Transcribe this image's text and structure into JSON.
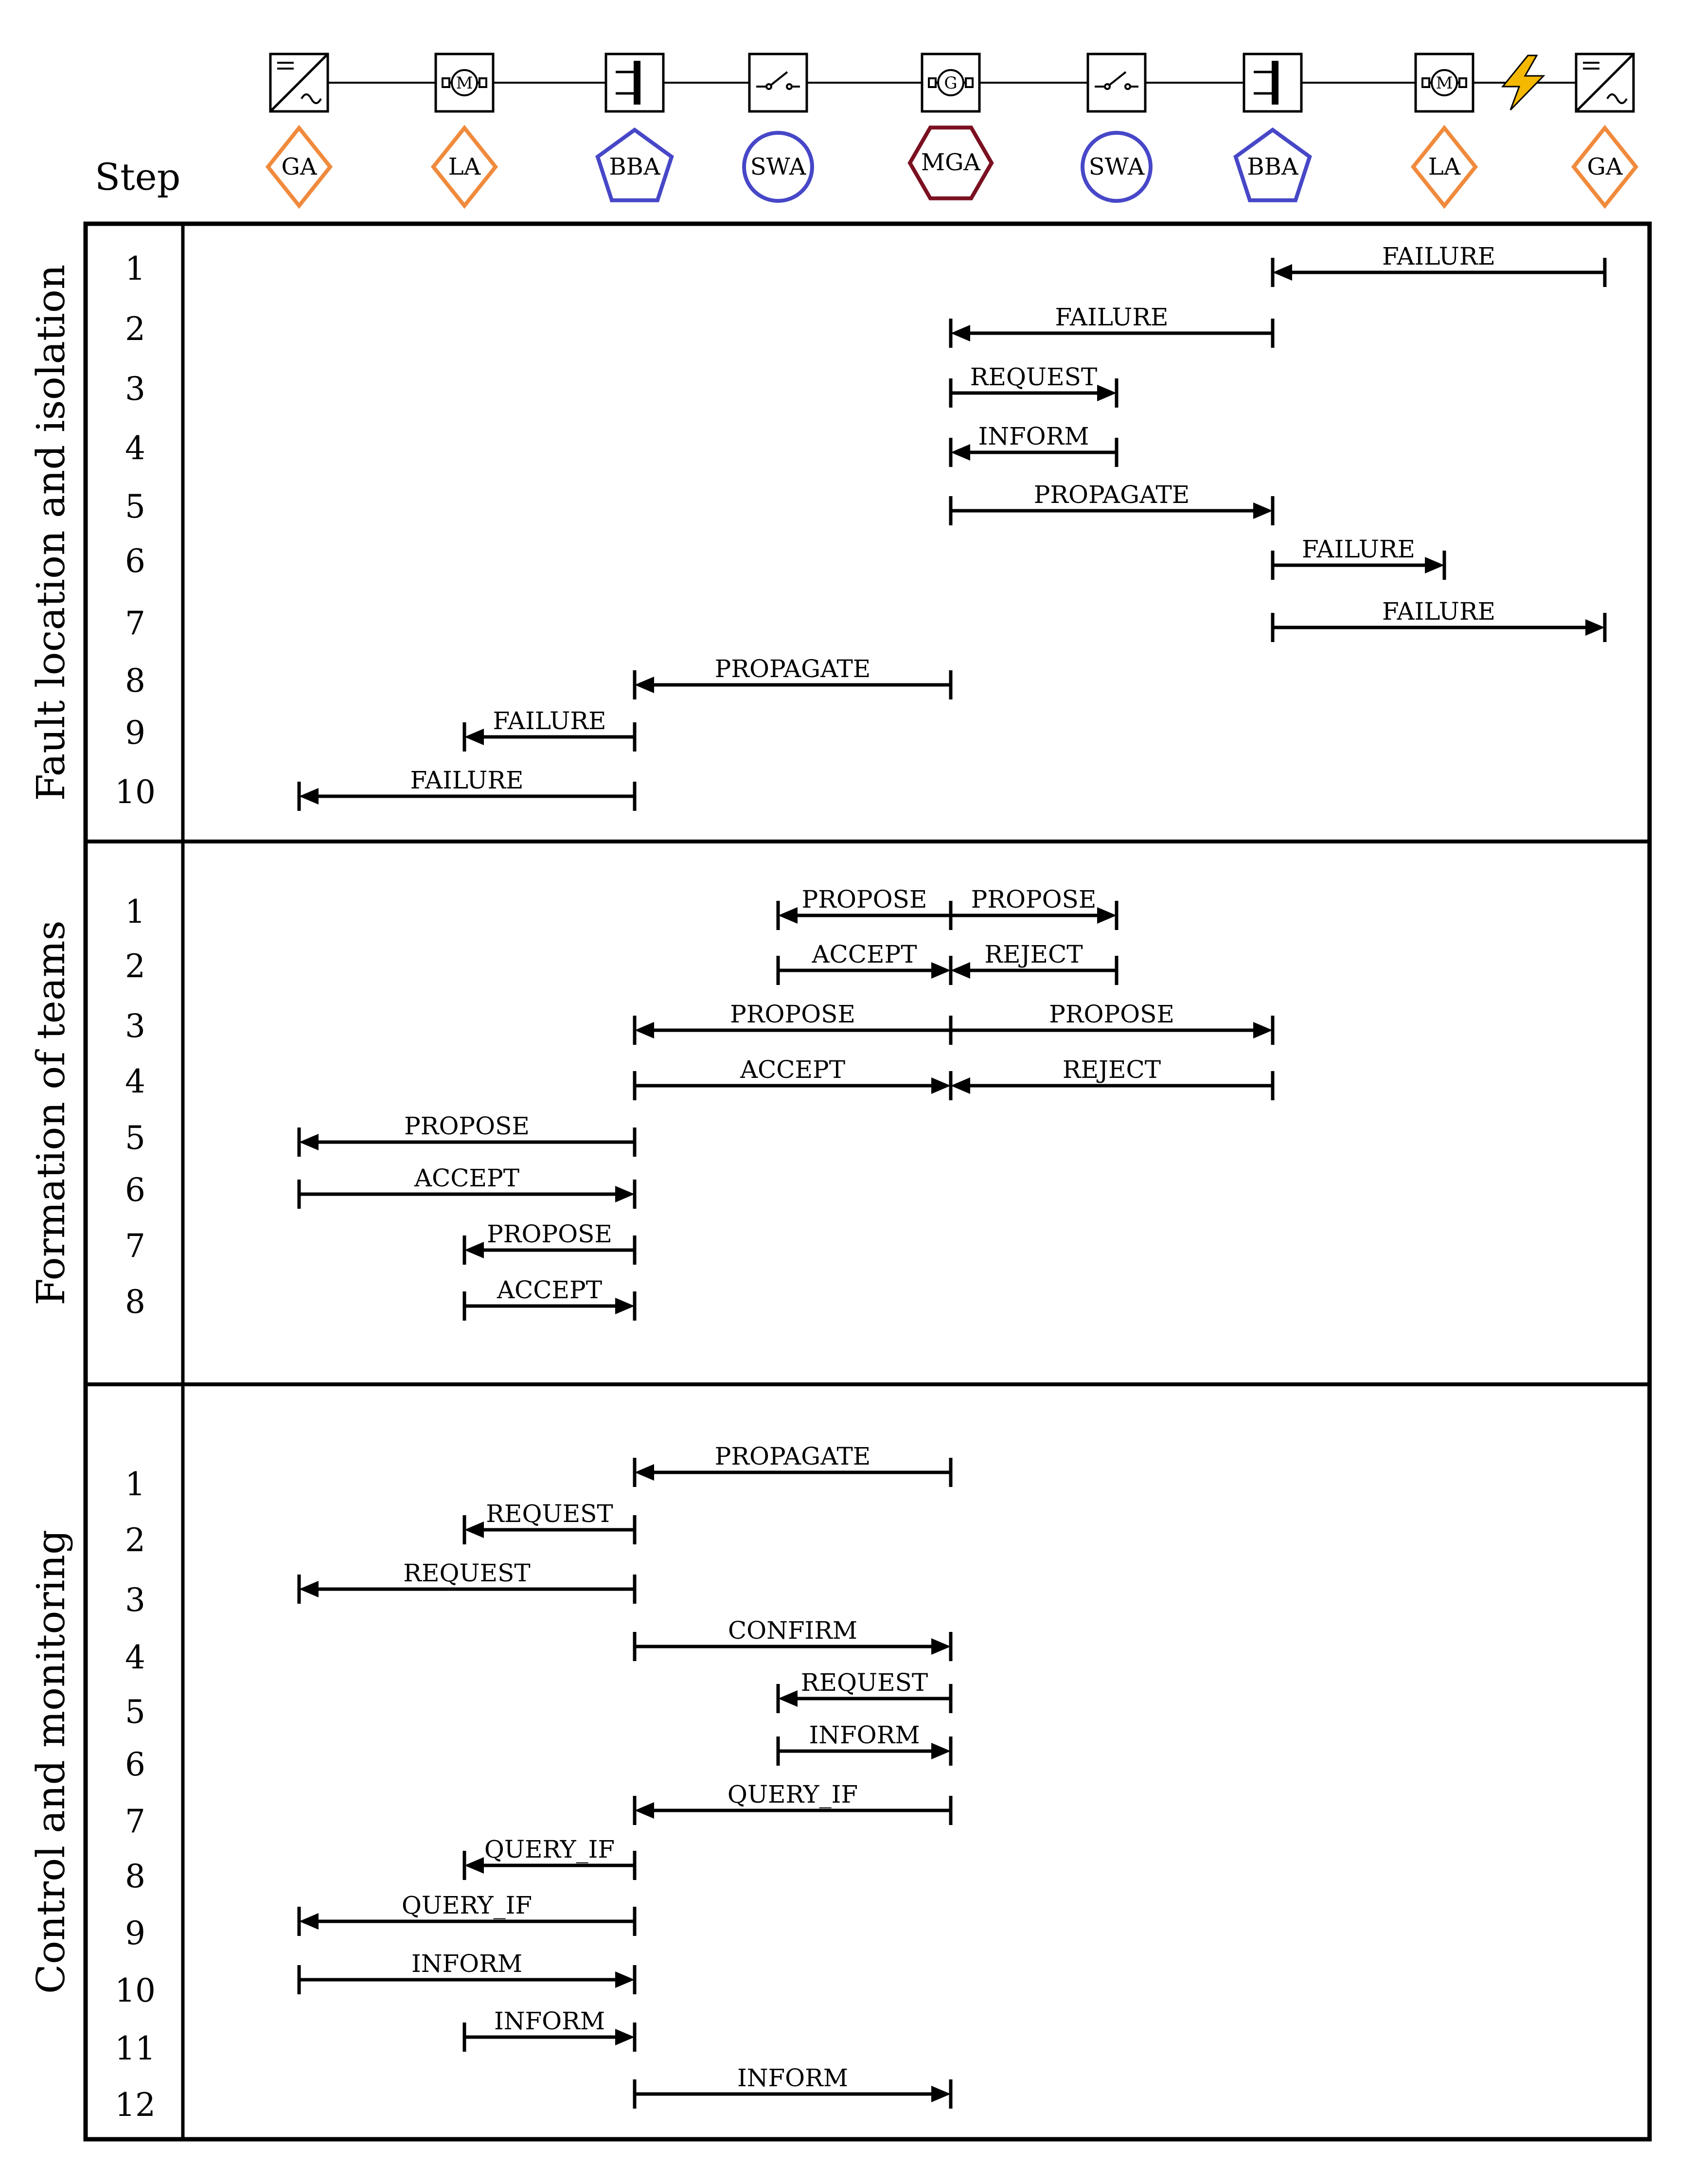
{
  "step_header": "Step",
  "colors": {
    "GA": "#f08a3c",
    "LA": "#f08a3c",
    "BBA": "#4747c8",
    "SWA": "#4747c8",
    "MGA": "#7a1020",
    "line": "#000000",
    "bolt": "#f5b800"
  },
  "agents": [
    {
      "label": "GA",
      "shape": "diamond",
      "device": "inverter-icon"
    },
    {
      "label": "LA",
      "shape": "diamond",
      "device": "motor-icon"
    },
    {
      "label": "BBA",
      "shape": "pentagon",
      "device": "busbar-icon"
    },
    {
      "label": "SWA",
      "shape": "circle",
      "device": "switch-icon"
    },
    {
      "label": "MGA",
      "shape": "hexagon",
      "device": "generator-icon"
    },
    {
      "label": "SWA",
      "shape": "circle",
      "device": "switch-icon"
    },
    {
      "label": "BBA",
      "shape": "pentagon",
      "device": "busbar-icon"
    },
    {
      "label": "LA",
      "shape": "diamond",
      "device": "motor-icon"
    },
    {
      "label": "GA",
      "shape": "diamond",
      "device": "inverter-icon"
    }
  ],
  "fault_marker": "lightning-icon",
  "phases": [
    {
      "title": "Fault location and isolation",
      "steps": [
        "1",
        "2",
        "3",
        "4",
        "5",
        "6",
        "7",
        "8",
        "9",
        "10"
      ],
      "messages": [
        {
          "from": 8,
          "to": 6,
          "label": "FAILURE"
        },
        {
          "from": 6,
          "to": 4,
          "label": "FAILURE"
        },
        {
          "from": 4,
          "to": 5,
          "label": "REQUEST"
        },
        {
          "from": 5,
          "to": 4,
          "label": "INFORM"
        },
        {
          "from": 4,
          "to": 6,
          "label": "PROPAGATE"
        },
        {
          "from": 6,
          "to": 7,
          "label": "FAILURE"
        },
        {
          "from": 6,
          "to": 8,
          "label": "FAILURE"
        },
        {
          "from": 4,
          "to": 2,
          "label": "PROPAGATE"
        },
        {
          "from": 2,
          "to": 1,
          "label": "FAILURE"
        },
        {
          "from": 2,
          "to": 0,
          "label": "FAILURE"
        }
      ]
    },
    {
      "title": "Formation of teams",
      "steps": [
        "1",
        "2",
        "3",
        "4",
        "5",
        "6",
        "7",
        "8"
      ],
      "messages": [
        {
          "from": 4,
          "to": 3,
          "label": "PROPOSE"
        },
        {
          "from": 4,
          "to": 5,
          "label": "PROPOSE"
        },
        {
          "from": 3,
          "to": 4,
          "label": "ACCEPT"
        },
        {
          "from": 5,
          "to": 4,
          "label": "REJECT"
        },
        {
          "from": 4,
          "to": 2,
          "label": "PROPOSE"
        },
        {
          "from": 4,
          "to": 6,
          "label": "PROPOSE"
        },
        {
          "from": 2,
          "to": 4,
          "label": "ACCEPT"
        },
        {
          "from": 6,
          "to": 4,
          "label": "REJECT"
        },
        {
          "from": 2,
          "to": 0,
          "label": "PROPOSE"
        },
        {
          "from": 0,
          "to": 2,
          "label": "ACCEPT"
        },
        {
          "from": 2,
          "to": 1,
          "label": "PROPOSE"
        },
        {
          "from": 1,
          "to": 2,
          "label": "ACCEPT"
        }
      ]
    },
    {
      "title": "Control and monitoring",
      "steps": [
        "1",
        "2",
        "3",
        "4",
        "5",
        "6",
        "7",
        "8",
        "9",
        "10",
        "11",
        "12"
      ],
      "messages": [
        {
          "from": 4,
          "to": 2,
          "label": "PROPAGATE"
        },
        {
          "from": 2,
          "to": 1,
          "label": "REQUEST"
        },
        {
          "from": 2,
          "to": 0,
          "label": "REQUEST"
        },
        {
          "from": 2,
          "to": 4,
          "label": "CONFIRM"
        },
        {
          "from": 4,
          "to": 3,
          "label": "REQUEST"
        },
        {
          "from": 3,
          "to": 4,
          "label": "INFORM"
        },
        {
          "from": 4,
          "to": 2,
          "label": "QUERY_IF"
        },
        {
          "from": 2,
          "to": 1,
          "label": "QUERY_IF"
        },
        {
          "from": 2,
          "to": 0,
          "label": "QUERY_IF"
        },
        {
          "from": 0,
          "to": 2,
          "label": "INFORM"
        },
        {
          "from": 1,
          "to": 2,
          "label": "INFORM"
        },
        {
          "from": 2,
          "to": 4,
          "label": "INFORM"
        }
      ]
    }
  ]
}
